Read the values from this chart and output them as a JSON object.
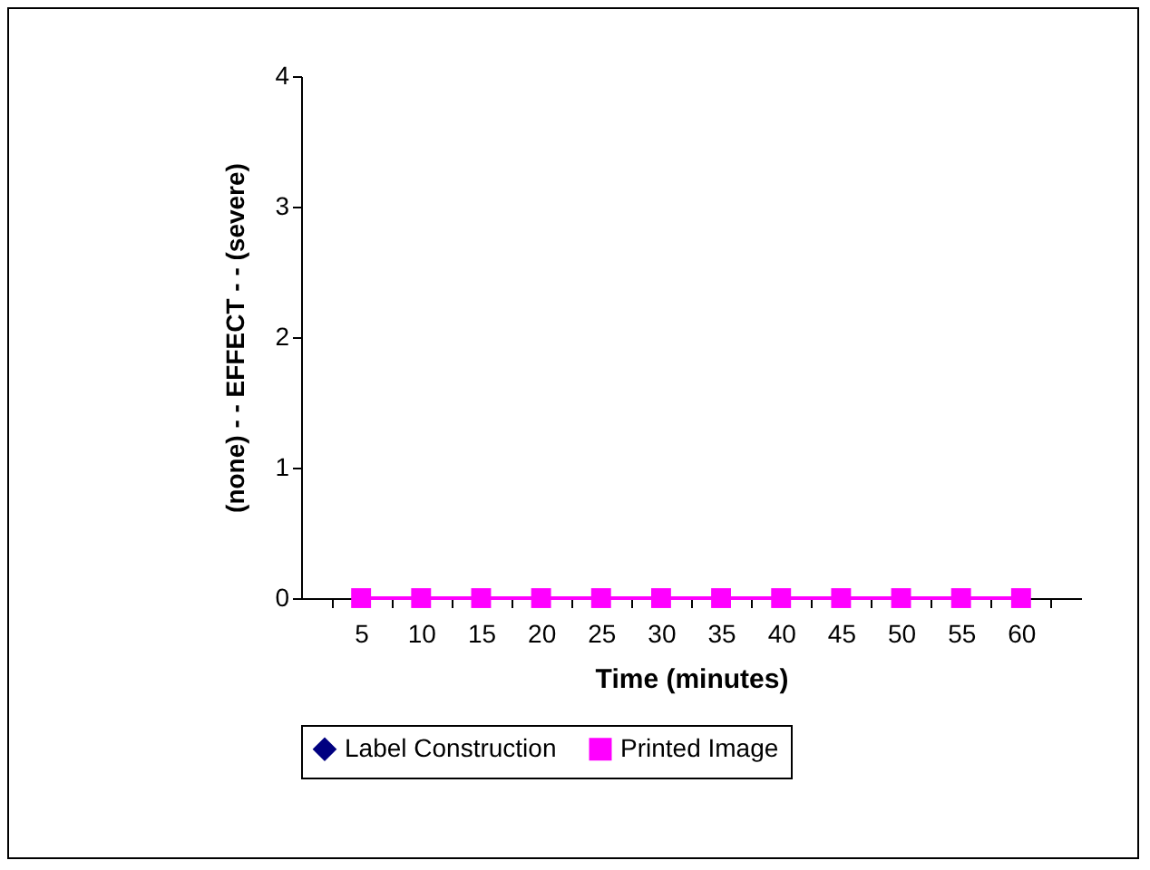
{
  "chart_data": {
    "type": "line",
    "xlabel": "Time (minutes)",
    "ylabel": "(none) - - EFFECT - - (severe)",
    "categories": [
      "5",
      "10",
      "15",
      "20",
      "25",
      "30",
      "35",
      "40",
      "45",
      "50",
      "55",
      "60"
    ],
    "series": [
      {
        "name": "Label Construction",
        "color": "#000080",
        "marker": "diamond",
        "values": [
          null,
          null,
          null,
          null,
          null,
          null,
          null,
          null,
          null,
          null,
          null,
          null
        ]
      },
      {
        "name": "Printed Image",
        "color": "#ff00ff",
        "marker": "square",
        "values": [
          0,
          0,
          0,
          0,
          0,
          0,
          0,
          0,
          0,
          0,
          0,
          0
        ]
      }
    ],
    "ylim": [
      0,
      4
    ],
    "yticks": [
      0,
      1,
      2,
      3,
      4
    ],
    "grid": false,
    "legend": "bottom"
  }
}
